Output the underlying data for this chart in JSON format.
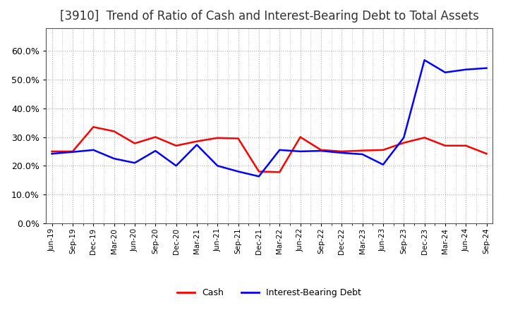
{
  "title": "[3910]  Trend of Ratio of Cash and Interest-Bearing Debt to Total Assets",
  "x_labels": [
    "Jun-19",
    "Sep-19",
    "Dec-19",
    "Mar-20",
    "Jun-20",
    "Sep-20",
    "Dec-20",
    "Mar-21",
    "Jun-21",
    "Sep-21",
    "Dec-21",
    "Mar-22",
    "Jun-22",
    "Sep-22",
    "Dec-22",
    "Mar-23",
    "Jun-23",
    "Sep-23",
    "Dec-23",
    "Mar-24",
    "Jun-24",
    "Sep-24"
  ],
  "cash": [
    0.25,
    0.25,
    0.335,
    0.32,
    0.278,
    0.3,
    0.27,
    0.285,
    0.297,
    0.295,
    0.18,
    0.178,
    0.3,
    0.255,
    0.25,
    0.253,
    0.255,
    0.28,
    0.298,
    0.27,
    0.27,
    0.242
  ],
  "interest_bearing_debt": [
    0.242,
    0.248,
    0.255,
    0.225,
    0.21,
    0.252,
    0.2,
    0.273,
    0.2,
    0.18,
    0.163,
    0.255,
    0.25,
    0.252,
    0.245,
    0.24,
    0.204,
    0.298,
    0.568,
    0.525,
    0.535,
    0.54
  ],
  "cash_color": "#ff0000",
  "debt_color": "#0000ff",
  "background_color": "#ffffff",
  "grid_color": "#aaaaaa",
  "ylim": [
    0.0,
    0.68
  ],
  "yticks": [
    0.0,
    0.1,
    0.2,
    0.3,
    0.4,
    0.5,
    0.6
  ],
  "title_fontsize": 12,
  "legend_labels": [
    "Cash",
    "Interest-Bearing Debt"
  ],
  "line_width": 1.8
}
